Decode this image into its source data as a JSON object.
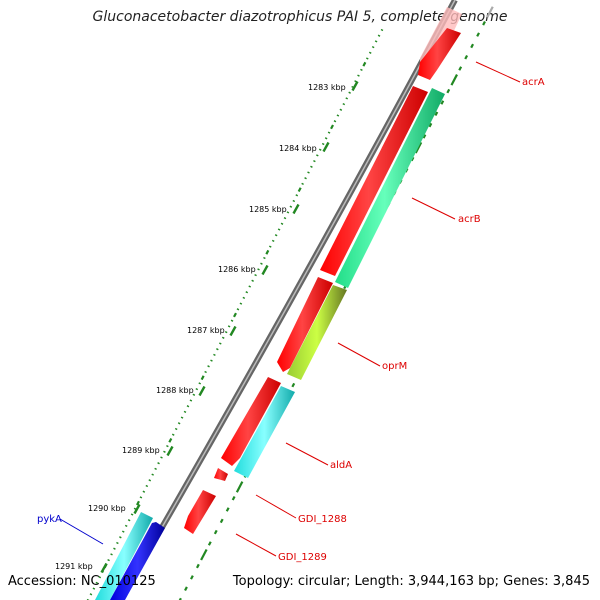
{
  "title": "Gluconacetobacter diazotrophicus PAI 5, complete genome",
  "footer": {
    "accession": "Accession: NC_010125",
    "topology": "Topology: circular; Length: 3,944,163 bp; Genes: 3,845"
  },
  "ticks": [
    "1283 kbp",
    "1284 kbp",
    "1285 kbp",
    "1286 kbp",
    "1287 kbp",
    "1288 kbp",
    "1289 kbp",
    "1290 kbp",
    "1291 kbp"
  ],
  "genes": [
    {
      "name": "acrA",
      "color": "#ff0000"
    },
    {
      "name": "acrB",
      "color": "#ff0000"
    },
    {
      "name": "oprM",
      "color": "#ff0000"
    },
    {
      "name": "aldA",
      "color": "#ff0000"
    },
    {
      "name": "GDI_1288",
      "color": "#ff0000"
    },
    {
      "name": "GDI_1289",
      "color": "#ff0000"
    },
    {
      "name": "pykA",
      "color": "#0000ff"
    }
  ],
  "colors": {
    "forward_cds": "#ff0000",
    "cog_green": "#33ee99",
    "cog_olive": "#99cc33",
    "cog_cyan": "#33ffff",
    "cog_blue": "#0000ff",
    "backbone": "#777777",
    "tick_green": "#228822"
  }
}
